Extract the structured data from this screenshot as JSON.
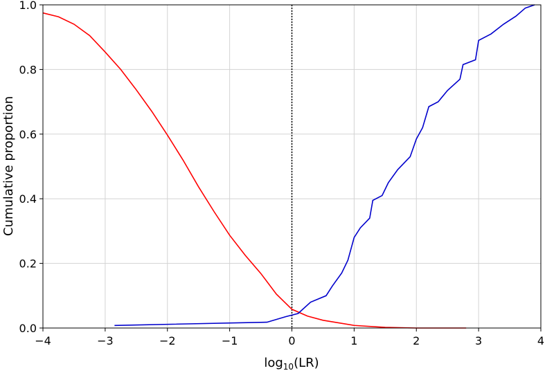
{
  "chart_data": {
    "type": "line",
    "ylabel": "Cumulative proportion",
    "xlabel_parts": [
      "log",
      "10",
      "(LR)"
    ],
    "xlim": [
      -4,
      4
    ],
    "ylim": [
      0,
      1
    ],
    "xticks": [
      {
        "value": -4,
        "label": "−4"
      },
      {
        "value": -3,
        "label": "−3"
      },
      {
        "value": -2,
        "label": "−2"
      },
      {
        "value": -1,
        "label": "−1"
      },
      0,
      1,
      2,
      3,
      4
    ],
    "yticks": [
      {
        "value": 0,
        "label": "0.0"
      },
      0.2,
      0.4,
      0.6,
      0.8,
      {
        "value": 1,
        "label": "1.0"
      }
    ],
    "grid": true,
    "vline": 0,
    "series": [
      {
        "color": "#ff0000",
        "x": [
          -4,
          -3.75,
          -3.5,
          -3.25,
          -3,
          -2.75,
          -2.5,
          -2.25,
          -2,
          -1.75,
          -1.5,
          -1.25,
          -1,
          -0.75,
          -0.5,
          -0.25,
          0,
          0.25,
          0.5,
          1,
          1.5,
          2,
          2.8
        ],
        "values": [
          0.975,
          0.963,
          0.94,
          0.905,
          0.854,
          0.8,
          0.737,
          0.67,
          0.597,
          0.52,
          0.437,
          0.36,
          0.287,
          0.225,
          0.169,
          0.105,
          0.058,
          0.037,
          0.024,
          0.008,
          0.002,
          0.0,
          0.0
        ]
      },
      {
        "color": "#0000cc",
        "x": [
          -2.85,
          -0.4,
          -0.1,
          0.1,
          0.3,
          0.55,
          0.65,
          0.8,
          0.9,
          1.0,
          1.1,
          1.25,
          1.3,
          1.45,
          1.55,
          1.7,
          1.9,
          2.0,
          2.1,
          2.2,
          2.35,
          2.5,
          2.7,
          2.75,
          2.95,
          3.0,
          3.2,
          3.4,
          3.6,
          3.75,
          3.9
        ],
        "values": [
          0.008,
          0.018,
          0.035,
          0.045,
          0.08,
          0.1,
          0.13,
          0.17,
          0.21,
          0.28,
          0.31,
          0.34,
          0.395,
          0.41,
          0.45,
          0.49,
          0.53,
          0.585,
          0.62,
          0.685,
          0.7,
          0.735,
          0.77,
          0.815,
          0.83,
          0.89,
          0.91,
          0.94,
          0.965,
          0.99,
          1.0
        ]
      }
    ]
  }
}
